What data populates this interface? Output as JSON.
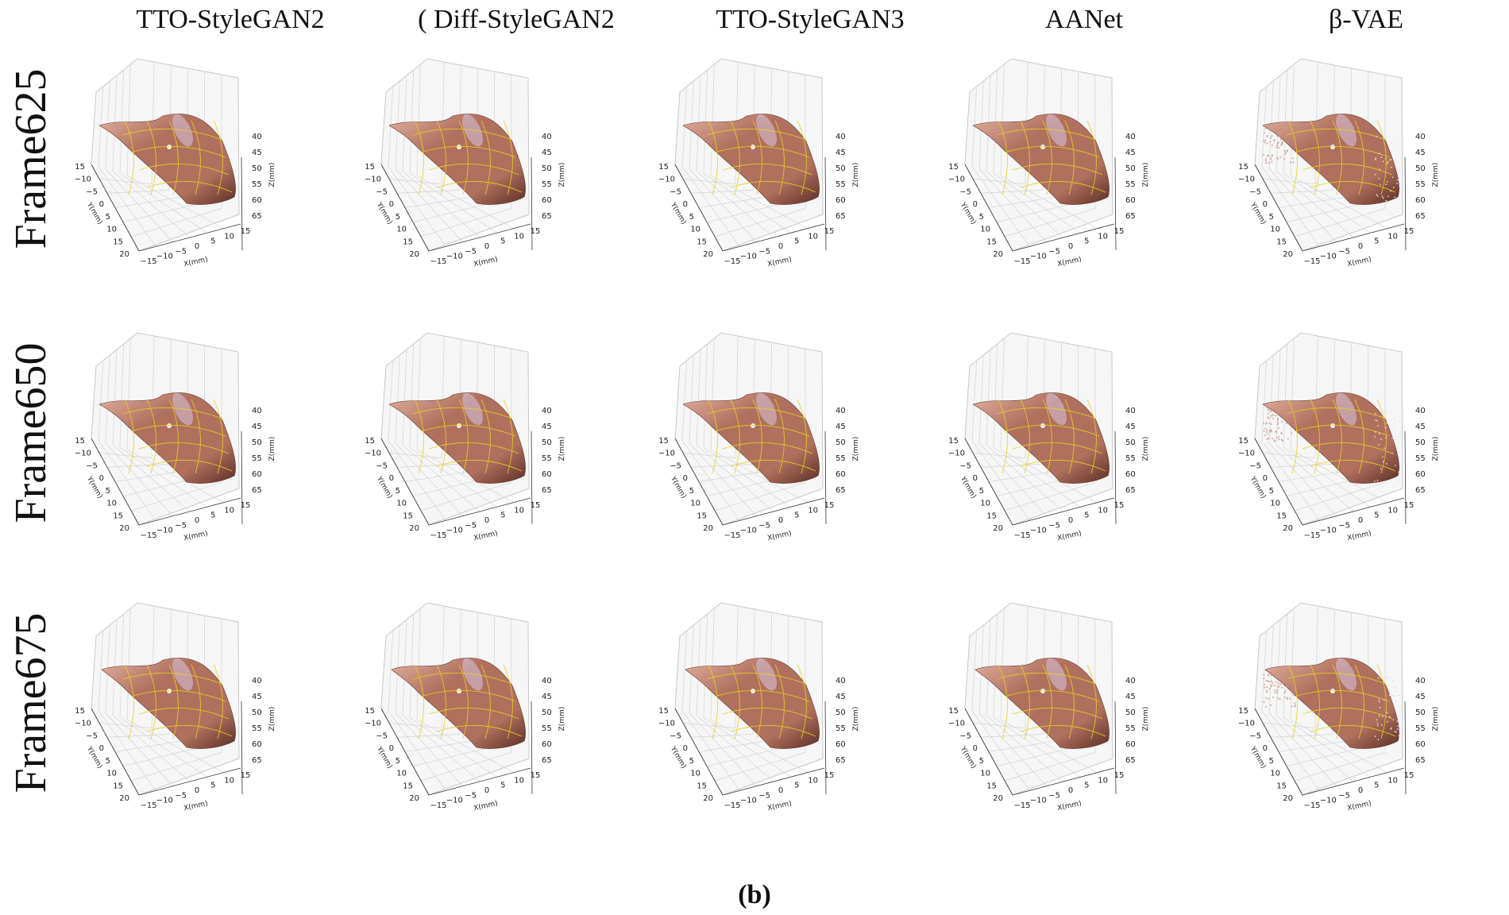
{
  "columns": [
    "TTO-StyleGAN2",
    "( Diff-StyleGAN2",
    "TTO-StyleGAN3",
    "AANet",
    "β-VAE"
  ],
  "rows": [
    "Frame625",
    "Frame650",
    "Frame675"
  ],
  "caption": "(b)",
  "axes": {
    "x_label": "X(mm)",
    "y_label": "Y(mm)",
    "z_label": "Z(mm)",
    "x_ticks": [
      "−15",
      "−10",
      "−5",
      "0",
      "5",
      "10",
      "15"
    ],
    "y_ticks": [
      "−15",
      "−10",
      "−5",
      "0",
      "5",
      "10",
      "15",
      "20"
    ],
    "z_ticks": [
      "40",
      "45",
      "50",
      "55",
      "60",
      "65"
    ]
  },
  "colors": {
    "surface_dark": "#5a2e26",
    "surface_mid": "#b0705e",
    "surface_light": "#e0b0a0",
    "grid_overlay": "#e8d020",
    "pane_grid": "#d8d8d8"
  }
}
